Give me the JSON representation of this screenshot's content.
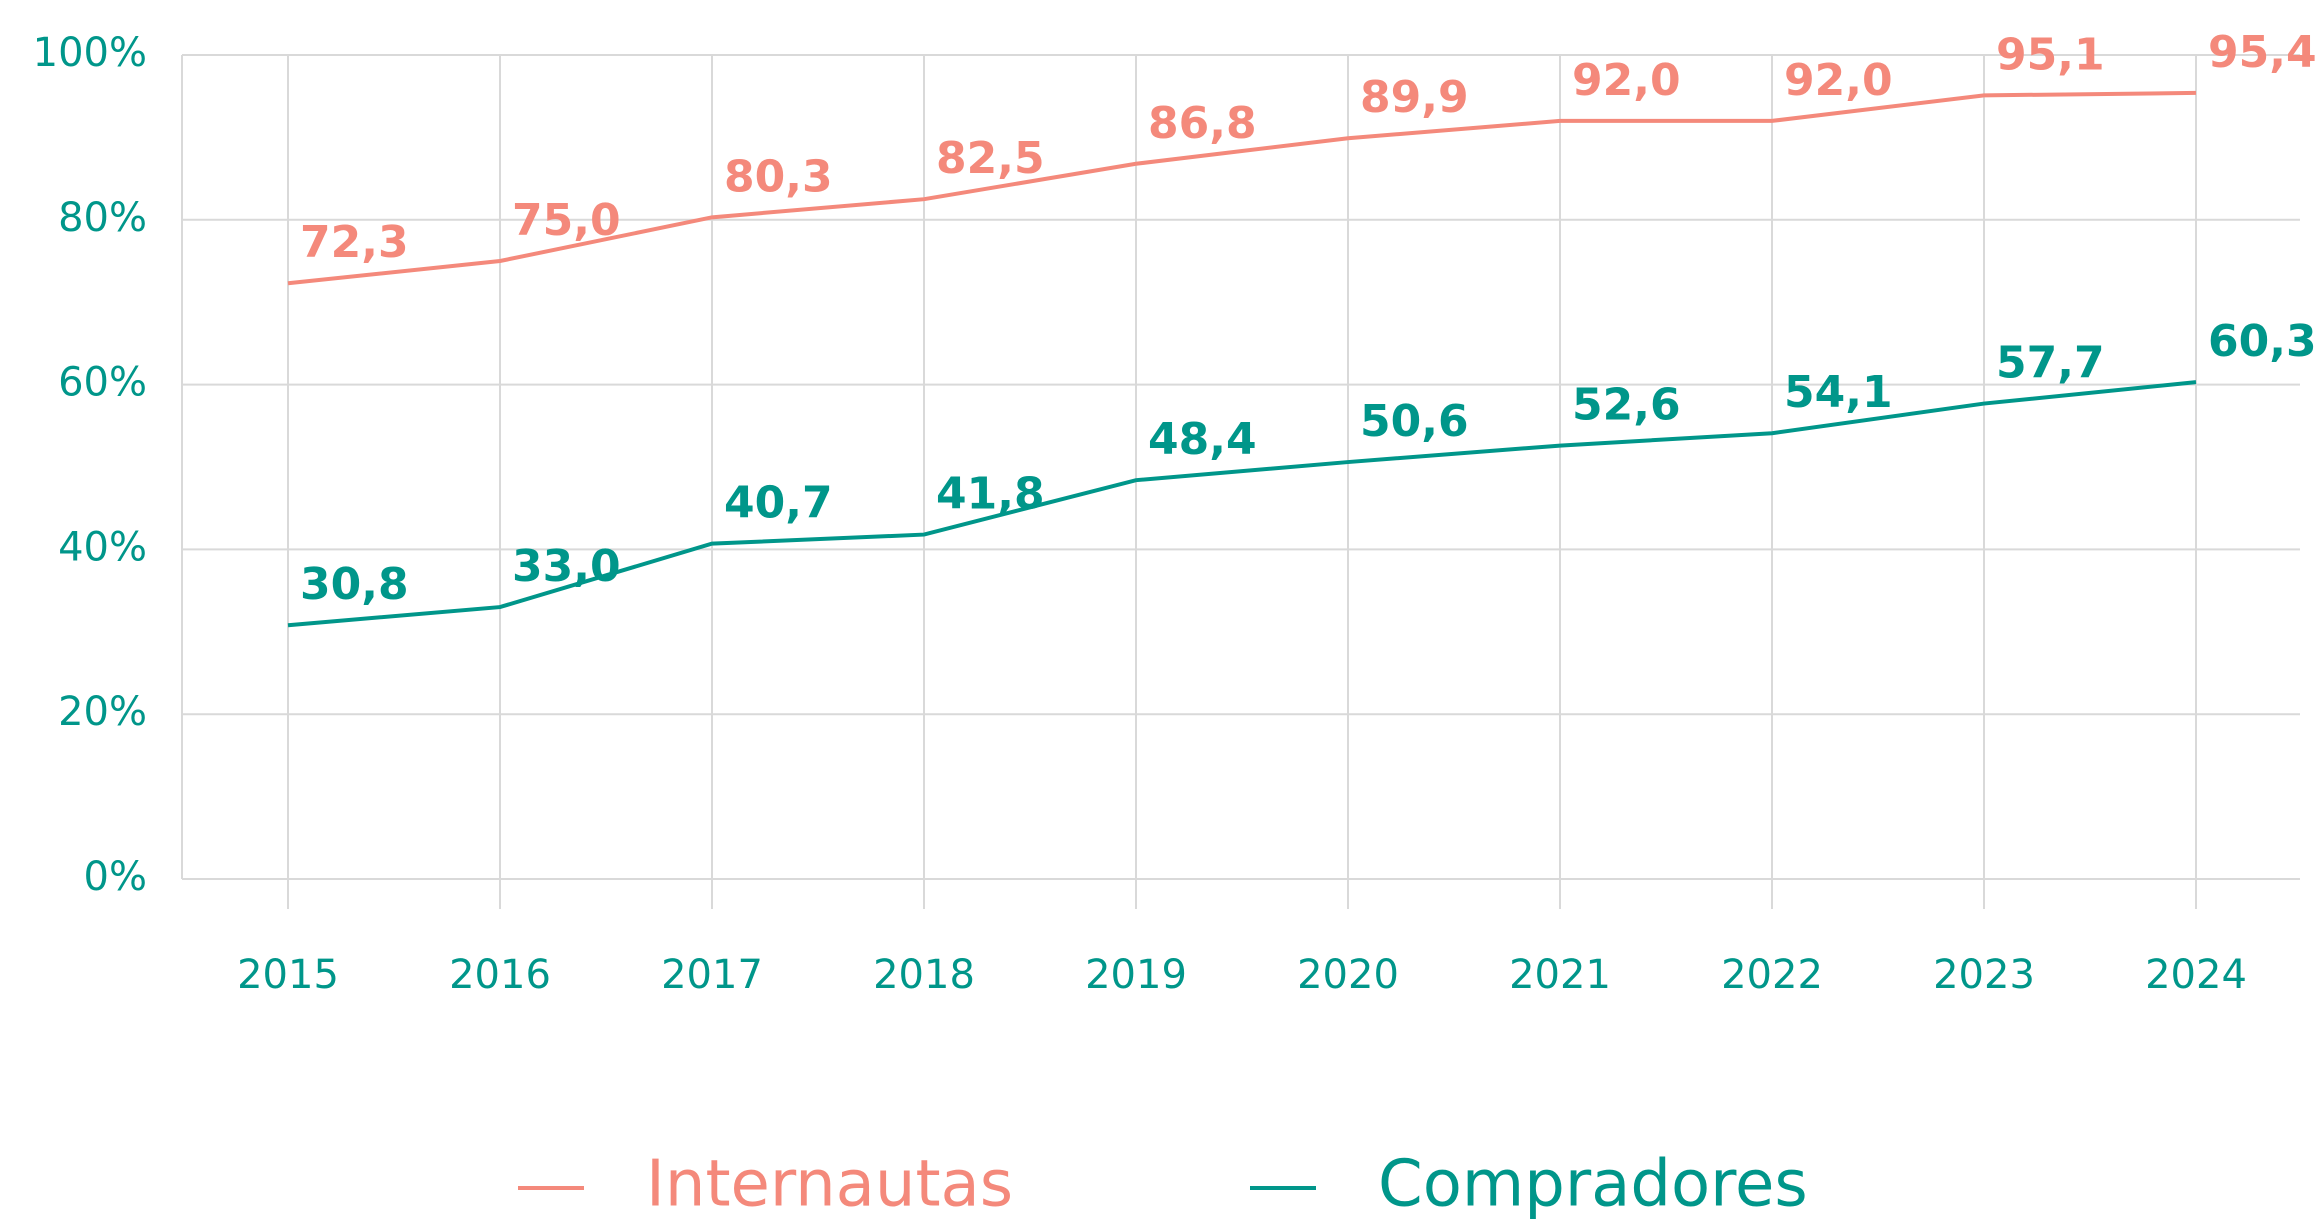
{
  "chart_data": {
    "type": "line",
    "categories": [
      "2015",
      "2016",
      "2017",
      "2018",
      "2019",
      "2020",
      "2021",
      "2022",
      "2023",
      "2024"
    ],
    "series": [
      {
        "name": "Internautas",
        "color": "#f4897b",
        "values": [
          72.3,
          75.0,
          80.3,
          82.5,
          86.8,
          89.9,
          92.0,
          92.0,
          95.1,
          95.4
        ],
        "value_labels": [
          "72,3",
          "75,0",
          "80,3",
          "82,5",
          "86,8",
          "89,9",
          "92,0",
          "92,0",
          "95,1",
          "95,4"
        ]
      },
      {
        "name": "Compradores",
        "color": "#00968a",
        "values": [
          30.8,
          33.0,
          40.7,
          41.8,
          48.4,
          50.6,
          52.6,
          54.1,
          57.7,
          60.3
        ],
        "value_labels": [
          "30,8",
          "33,0",
          "40,7",
          "41,8",
          "48,4",
          "50,6",
          "52,6",
          "54,1",
          "57,7",
          "60,3"
        ]
      }
    ],
    "ylim": [
      0,
      100
    ],
    "yticks": [
      {
        "value": 0,
        "label": "0%"
      },
      {
        "value": 20,
        "label": "20%"
      },
      {
        "value": 40,
        "label": "40%"
      },
      {
        "value": 60,
        "label": "60%"
      },
      {
        "value": 80,
        "label": "80%"
      },
      {
        "value": 100,
        "label": "100%"
      }
    ],
    "grid": true,
    "legend": "bottom",
    "axis_color": "#00968a"
  }
}
